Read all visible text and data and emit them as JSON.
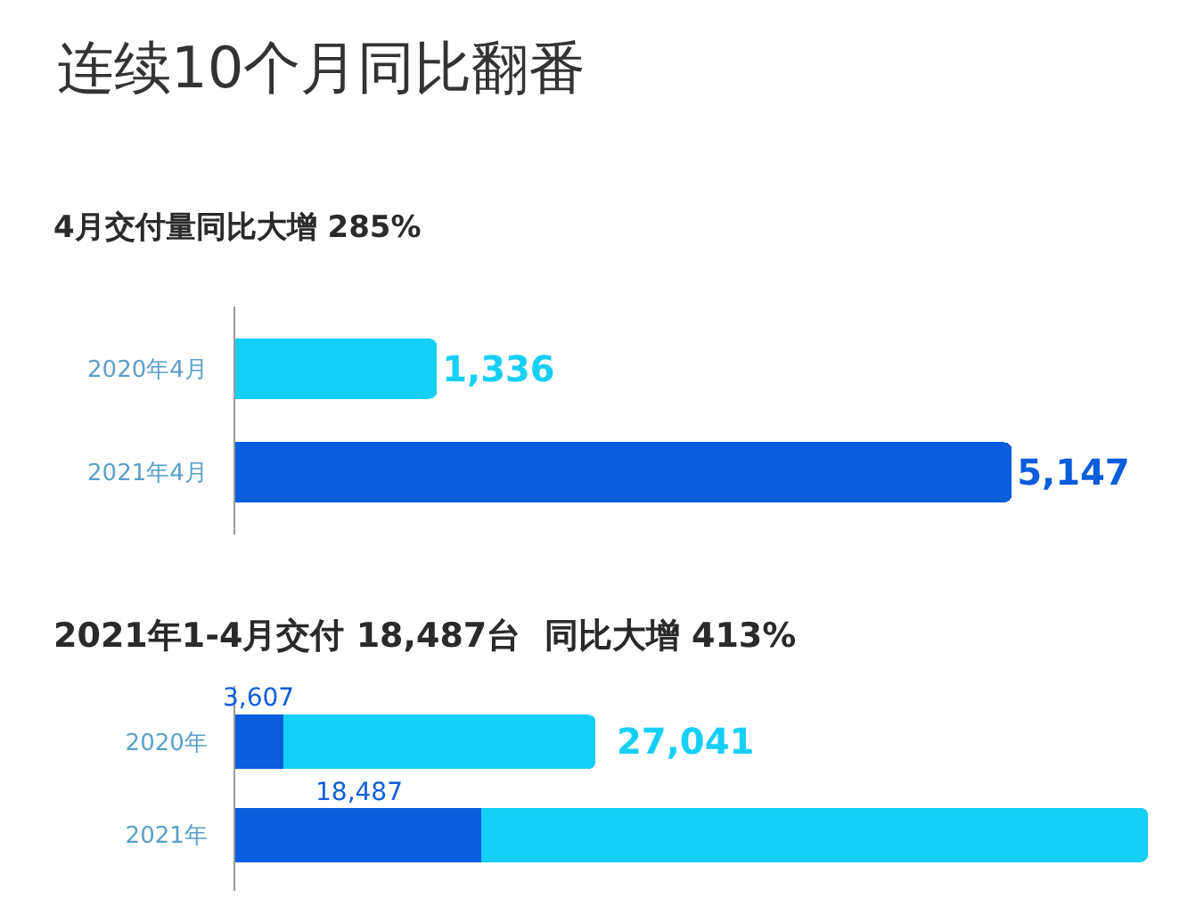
{
  "chart_data": [
    {
      "type": "bar",
      "orientation": "horizontal",
      "title": "连续10个月同比翻番",
      "subtitle": "4月交付量同比大增 285%",
      "categories": [
        "2020年4月",
        "2021年4月"
      ],
      "values": [
        1336,
        5147
      ],
      "colors": [
        "#16cff6",
        "#0a5ddb"
      ],
      "value_labels": [
        "1,336",
        "5,147"
      ],
      "tick_labels": "y"
    },
    {
      "type": "bar",
      "orientation": "horizontal",
      "stacked": true,
      "title": "2021年1-4月交付 18,487台  同比大增 413%",
      "categories": [
        "2020年",
        "2021年"
      ],
      "series": [
        {
          "color": "#0a5ddb",
          "values": [
            3607,
            18487
          ],
          "value_labels": [
            "3,607",
            "18,487"
          ]
        },
        {
          "color": "#16cff6",
          "values": [
            23434,
            50000
          ],
          "value_labels": [
            null,
            null
          ]
        }
      ],
      "totals": [
        "27,041",
        null
      ],
      "tick_labels": "y"
    }
  ]
}
